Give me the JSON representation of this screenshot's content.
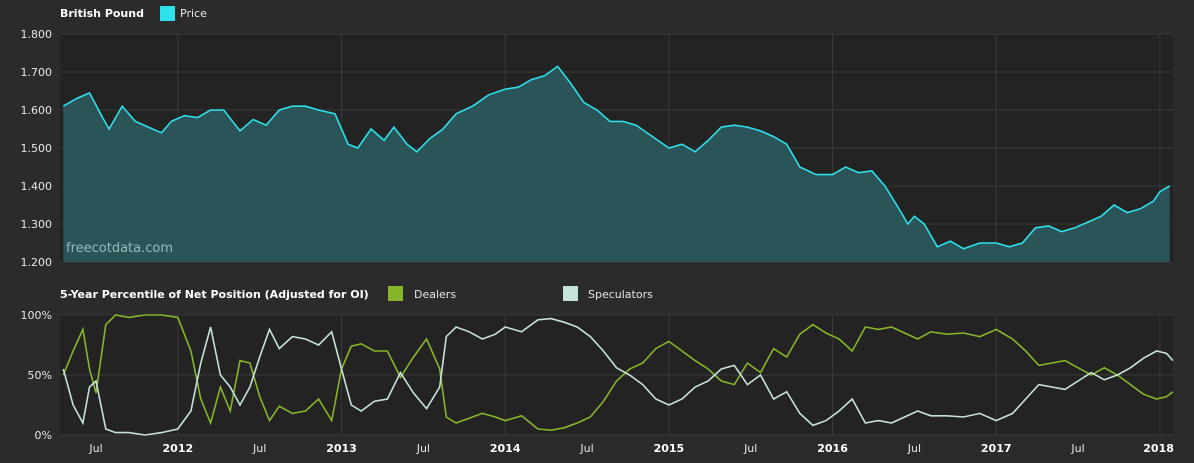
{
  "colors": {
    "background": "#2b2b2b",
    "plot_background": "#232323",
    "price": "#2ee0ea",
    "price_fill": "#2a5457",
    "dealers": "#86b52a",
    "speculators": "#c6e3da"
  },
  "top": {
    "title": "British Pound",
    "legend_price": "Price",
    "watermark": "freecotdata.com"
  },
  "bottom": {
    "title": "5-Year Percentile of Net Position (Adjusted for OI)",
    "legend_dealers": "Dealers",
    "legend_speculators": "Speculators"
  },
  "chart_data": [
    {
      "type": "area",
      "title": "British Pound",
      "series": [
        {
          "name": "Price"
        }
      ],
      "ylim": [
        1.2,
        1.8
      ],
      "y_ticks": [
        "1.800",
        "1.700",
        "1.600",
        "1.500",
        "1.400",
        "1.300",
        "1.200"
      ],
      "x_range": [
        2011.28,
        2018.08
      ],
      "x": [
        2011.3,
        2011.38,
        2011.46,
        2011.54,
        2011.58,
        2011.66,
        2011.74,
        2011.82,
        2011.9,
        2011.96,
        2012.04,
        2012.12,
        2012.2,
        2012.28,
        2012.38,
        2012.46,
        2012.54,
        2012.62,
        2012.7,
        2012.78,
        2012.86,
        2012.96,
        2013.04,
        2013.1,
        2013.18,
        2013.26,
        2013.32,
        2013.4,
        2013.46,
        2013.54,
        2013.62,
        2013.7,
        2013.8,
        2013.9,
        2014.0,
        2014.08,
        2014.16,
        2014.24,
        2014.32,
        2014.4,
        2014.48,
        2014.56,
        2014.64,
        2014.72,
        2014.8,
        2014.9,
        2015.0,
        2015.08,
        2015.16,
        2015.24,
        2015.32,
        2015.4,
        2015.48,
        2015.56,
        2015.64,
        2015.72,
        2015.8,
        2015.9,
        2016.0,
        2016.08,
        2016.16,
        2016.24,
        2016.32,
        2016.42,
        2016.46,
        2016.5,
        2016.56,
        2016.64,
        2016.72,
        2016.8,
        2016.9,
        2017.0,
        2017.08,
        2017.16,
        2017.24,
        2017.32,
        2017.4,
        2017.48,
        2017.56,
        2017.64,
        2017.72,
        2017.8,
        2017.88,
        2017.96,
        2018.0,
        2018.06
      ],
      "values": [
        1.61,
        1.63,
        1.645,
        1.58,
        1.55,
        1.61,
        1.57,
        1.555,
        1.54,
        1.57,
        1.585,
        1.58,
        1.6,
        1.6,
        1.545,
        1.575,
        1.56,
        1.6,
        1.61,
        1.61,
        1.6,
        1.59,
        1.51,
        1.5,
        1.55,
        1.52,
        1.555,
        1.51,
        1.49,
        1.525,
        1.55,
        1.59,
        1.61,
        1.64,
        1.655,
        1.66,
        1.68,
        1.69,
        1.715,
        1.67,
        1.62,
        1.6,
        1.57,
        1.57,
        1.56,
        1.53,
        1.5,
        1.51,
        1.49,
        1.52,
        1.555,
        1.56,
        1.555,
        1.545,
        1.53,
        1.51,
        1.45,
        1.43,
        1.43,
        1.45,
        1.435,
        1.44,
        1.4,
        1.33,
        1.3,
        1.32,
        1.3,
        1.24,
        1.255,
        1.235,
        1.25,
        1.25,
        1.24,
        1.25,
        1.29,
        1.295,
        1.28,
        1.29,
        1.305,
        1.32,
        1.35,
        1.33,
        1.34,
        1.36,
        1.385,
        1.4
      ]
    },
    {
      "type": "line",
      "title": "5-Year Percentile of Net Position (Adjusted for OI)",
      "ylim": [
        0,
        100
      ],
      "y_ticks": [
        "100%",
        "50%",
        "0%"
      ],
      "x_range": [
        2011.28,
        2018.08
      ],
      "x_ticks": [
        "Jul",
        "2012",
        "Jul",
        "2013",
        "Jul",
        "2014",
        "Jul",
        "2015",
        "Jul",
        "2016",
        "Jul",
        "2017",
        "Jul",
        "2018"
      ],
      "x": [
        2011.3,
        2011.36,
        2011.42,
        2011.46,
        2011.5,
        2011.56,
        2011.62,
        2011.7,
        2011.8,
        2011.9,
        2012.0,
        2012.08,
        2012.14,
        2012.2,
        2012.26,
        2012.32,
        2012.38,
        2012.44,
        2012.5,
        2012.56,
        2012.62,
        2012.7,
        2012.78,
        2012.86,
        2012.94,
        2013.0,
        2013.06,
        2013.12,
        2013.2,
        2013.28,
        2013.36,
        2013.44,
        2013.52,
        2013.6,
        2013.64,
        2013.7,
        2013.78,
        2013.86,
        2013.94,
        2014.0,
        2014.1,
        2014.2,
        2014.28,
        2014.36,
        2014.44,
        2014.52,
        2014.6,
        2014.68,
        2014.76,
        2014.84,
        2014.92,
        2015.0,
        2015.08,
        2015.16,
        2015.24,
        2015.32,
        2015.4,
        2015.48,
        2015.56,
        2015.64,
        2015.72,
        2015.8,
        2015.88,
        2015.96,
        2016.04,
        2016.12,
        2016.2,
        2016.28,
        2016.36,
        2016.44,
        2016.52,
        2016.6,
        2016.7,
        2016.8,
        2016.9,
        2017.0,
        2017.1,
        2017.18,
        2017.26,
        2017.34,
        2017.42,
        2017.5,
        2017.58,
        2017.66,
        2017.74,
        2017.82,
        2017.9,
        2017.98,
        2018.04,
        2018.08
      ],
      "series": [
        {
          "name": "Dealers",
          "values": [
            50,
            70,
            88,
            55,
            35,
            92,
            100,
            98,
            100,
            100,
            98,
            70,
            30,
            10,
            40,
            20,
            62,
            60,
            32,
            12,
            24,
            18,
            20,
            30,
            12,
            55,
            74,
            76,
            70,
            70,
            48,
            65,
            80,
            55,
            15,
            10,
            14,
            18,
            15,
            12,
            16,
            5,
            4,
            6,
            10,
            15,
            28,
            45,
            55,
            60,
            72,
            78,
            70,
            62,
            55,
            45,
            42,
            60,
            52,
            72,
            65,
            84,
            92,
            85,
            80,
            70,
            90,
            88,
            90,
            85,
            80,
            86,
            84,
            85,
            82,
            88,
            80,
            70,
            58,
            60,
            62,
            56,
            50,
            56,
            50,
            42,
            34,
            30,
            32,
            36
          ]
        },
        {
          "name": "Speculators",
          "values": [
            55,
            25,
            10,
            40,
            45,
            5,
            2,
            2,
            0,
            2,
            5,
            20,
            60,
            90,
            50,
            40,
            25,
            40,
            65,
            88,
            72,
            82,
            80,
            75,
            86,
            55,
            25,
            20,
            28,
            30,
            52,
            35,
            22,
            40,
            82,
            90,
            86,
            80,
            84,
            90,
            86,
            96,
            97,
            94,
            90,
            82,
            70,
            56,
            50,
            42,
            30,
            25,
            30,
            40,
            45,
            55,
            58,
            42,
            50,
            30,
            36,
            18,
            8,
            12,
            20,
            30,
            10,
            12,
            10,
            15,
            20,
            16,
            16,
            15,
            18,
            12,
            18,
            30,
            42,
            40,
            38,
            45,
            52,
            46,
            50,
            56,
            64,
            70,
            68,
            62
          ]
        }
      ]
    }
  ]
}
